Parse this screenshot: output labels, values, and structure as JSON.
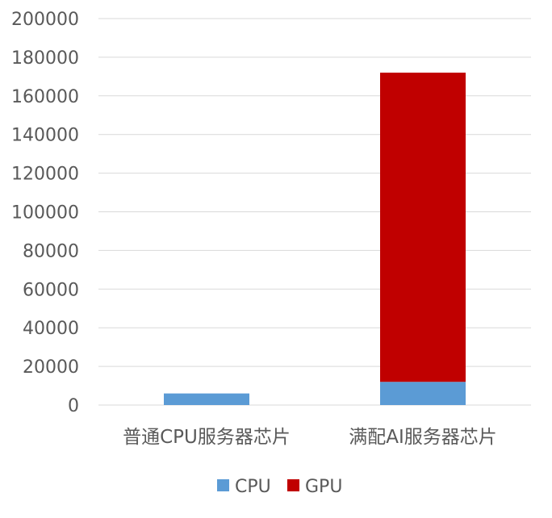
{
  "chart_data": {
    "type": "bar",
    "stacked": true,
    "categories": [
      "普通CPU服务器芯片",
      "满配AI服务器芯片"
    ],
    "series": [
      {
        "name": "CPU",
        "color": "#5B9BD5",
        "values": [
          6000,
          12000
        ]
      },
      {
        "name": "GPU",
        "color": "#C00000",
        "values": [
          0,
          160000
        ]
      }
    ],
    "title": "",
    "xlabel": "",
    "ylabel": "",
    "ylim": [
      0,
      200000
    ],
    "yticks": [
      "0",
      "20000",
      "40000",
      "60000",
      "80000",
      "100000",
      "120000",
      "140000",
      "160000",
      "180000",
      "200000"
    ],
    "grid": true,
    "legend_position": "bottom",
    "colors": {
      "gridline": "#D9D9D9",
      "axis_text": "#595959"
    }
  }
}
